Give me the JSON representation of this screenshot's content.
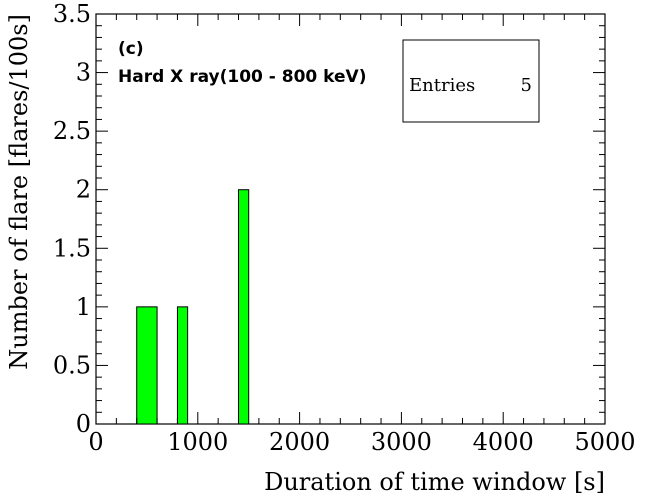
{
  "chart_data": {
    "type": "bar",
    "title": "",
    "xlabel": "Duration of time window [s]",
    "ylabel": "Number of flare [flares/100s]",
    "xlim": [
      0,
      5000
    ],
    "ylim": [
      0,
      3.5
    ],
    "x_ticks": [
      0,
      1000,
      2000,
      3000,
      4000,
      5000
    ],
    "y_ticks": [
      0,
      0.5,
      1,
      1.5,
      2,
      2.5,
      3,
      3.5
    ],
    "x_tick_labels": [
      "0",
      "1000",
      "2000",
      "3000",
      "4000",
      "5000"
    ],
    "y_tick_labels": [
      "0",
      "0.5",
      "1",
      "1.5",
      "2",
      "2.5",
      "3",
      "3.5"
    ],
    "bins": [
      {
        "x_start": 400,
        "x_end": 600,
        "value": 1
      },
      {
        "x_start": 800,
        "x_end": 900,
        "value": 1
      },
      {
        "x_start": 1400,
        "x_end": 1500,
        "value": 2
      }
    ],
    "bar_color": "#00ff00",
    "annotations": [
      "(c)",
      "Hard X ray(100 - 800 keV)"
    ],
    "stats_box": {
      "label": "Entries",
      "value": "5"
    },
    "legend_placement": "top-right",
    "grid": false
  }
}
